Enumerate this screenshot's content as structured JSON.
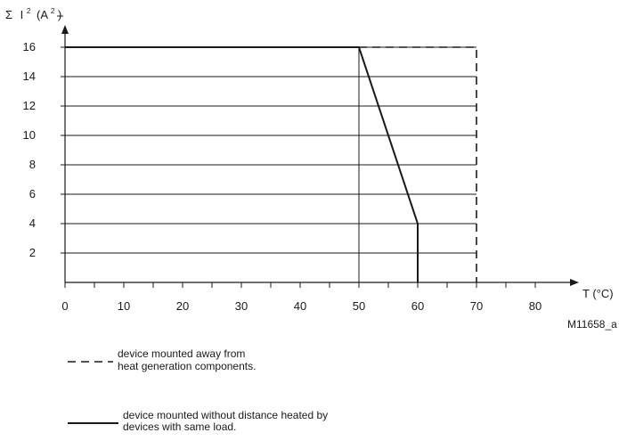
{
  "chart_data": {
    "type": "line",
    "ylabel_parts": {
      "sigma": "Σ",
      "i": "I",
      "i_exp": "2",
      "unit_open": "(A",
      "unit_exp": "2",
      "unit_close": ")"
    },
    "xlabel": "T (°C)",
    "xlim": [
      0,
      80
    ],
    "ylim": [
      0,
      16
    ],
    "x_ticks": [
      0,
      10,
      20,
      30,
      40,
      50,
      60,
      70,
      80
    ],
    "y_ticks": [
      2,
      4,
      6,
      8,
      10,
      12,
      14,
      16
    ],
    "x_minor_step": 5,
    "grid": "horizontal",
    "series": [
      {
        "style": "dashed",
        "points": [
          [
            0,
            16
          ],
          [
            70,
            16
          ],
          [
            70,
            0
          ]
        ]
      },
      {
        "style": "solid",
        "points": [
          [
            0,
            16
          ],
          [
            50,
            16
          ],
          [
            60,
            4
          ],
          [
            60,
            0
          ]
        ]
      }
    ],
    "vertical_marker_x": 50,
    "figure_code": "M11658_a"
  },
  "legend": [
    {
      "style": "dashed",
      "lines": [
        "device mounted away from",
        "heat generation components."
      ]
    },
    {
      "style": "solid",
      "lines": [
        "device mounted without distance heated by",
        "devices with same load."
      ]
    }
  ]
}
